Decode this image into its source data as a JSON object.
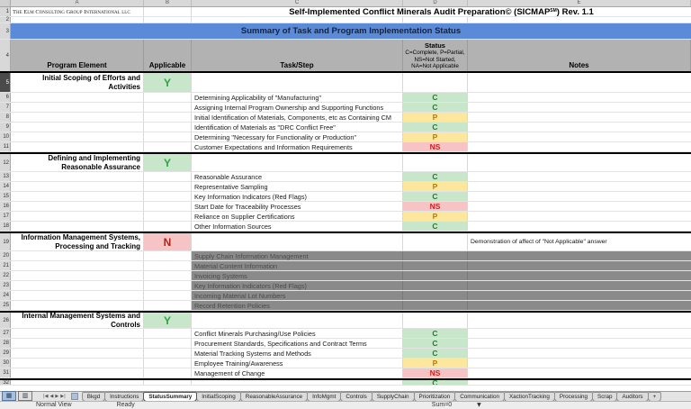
{
  "header": {
    "logo": "The Elm Consulting Group International llc",
    "title_main": "Self-Implemented Conflict Minerals Audit Preparation© (SICMAP",
    "title_sup": "SM",
    "title_tail": ")  Rev. 1.1",
    "banner": "Summary of Task and Program Implementation Status"
  },
  "columns": {
    "letters": [
      "A",
      "B",
      "C",
      "D",
      "E"
    ],
    "program_element": "Program Element",
    "applicable": "Applicable",
    "task_step": "Task/Step",
    "status_title": "Status",
    "status_legend": [
      "C=Complete, P=Partial,",
      "NS=Not Started,",
      "NA=Not Applicable"
    ],
    "notes": "Notes"
  },
  "gutter_numbers": [
    "1",
    "2",
    "3",
    "4",
    "5",
    "6",
    "7",
    "8",
    "9",
    "10",
    "11",
    "12",
    "13",
    "14",
    "15",
    "16",
    "17",
    "18",
    "19",
    "20",
    "21",
    "22",
    "23",
    "24",
    "25",
    "26",
    "27",
    "28",
    "29",
    "30",
    "31",
    "32"
  ],
  "sections": [
    {
      "row": 5,
      "title": "Initial Scoping of Efforts and Activities",
      "applicable": "Y",
      "note": "",
      "disabled": false,
      "tasks": [
        {
          "row": 6,
          "task": "Determining Applicability of \"Manufacturing\"",
          "status": "C"
        },
        {
          "row": 7,
          "task": "Assigning Internal Program Ownership and Supporting Functions",
          "status": "C"
        },
        {
          "row": 8,
          "task": "Initial Identification of Materials, Components, etc as Containing CM",
          "status": "P"
        },
        {
          "row": 9,
          "task": "Identification of Materials as \"DRC Conflict Free\"",
          "status": "C"
        },
        {
          "row": 10,
          "task": "Determining \"Necessary for Functionality or Production\"",
          "status": "P"
        },
        {
          "row": 11,
          "task": "Customer Expectations and Information Requirements",
          "status": "NS"
        }
      ]
    },
    {
      "row": 12,
      "title": "Defining and Implementing Reasonable Assurance",
      "applicable": "Y",
      "note": "",
      "disabled": false,
      "tasks": [
        {
          "row": 13,
          "task": "Reasonable Assurance",
          "status": "C"
        },
        {
          "row": 14,
          "task": "Representative Sampling",
          "status": "P"
        },
        {
          "row": 15,
          "task": "Key Information Indicators (Red Flags)",
          "status": "C"
        },
        {
          "row": 16,
          "task": "Start Date for Traceability Processes",
          "status": "NS"
        },
        {
          "row": 17,
          "task": "Reliance on Supplier Certifications",
          "status": "P"
        },
        {
          "row": 18,
          "task": "Other Information Sources",
          "status": "C"
        }
      ]
    },
    {
      "row": 19,
      "title": "Information Management Systems, Processing and Tracking",
      "applicable": "N",
      "note": "Demonstration of affect of \"Not Applicable\" answer",
      "disabled": true,
      "tasks": [
        {
          "row": 20,
          "task": "Supply Chain Information Management",
          "status": ""
        },
        {
          "row": 21,
          "task": "Material Content Information",
          "status": ""
        },
        {
          "row": 22,
          "task": "Invoicing Systems",
          "status": ""
        },
        {
          "row": 23,
          "task": "Key Information Indicators (Red Flags)",
          "status": ""
        },
        {
          "row": 24,
          "task": "Incoming Material Lot Numbers",
          "status": ""
        },
        {
          "row": 25,
          "task": "Record Retention Policies",
          "status": ""
        }
      ]
    },
    {
      "row": 26,
      "title": "Internal Management Systems and Controls",
      "applicable": "Y",
      "note": "",
      "disabled": false,
      "tasks": [
        {
          "row": 27,
          "task": "Conflict Minerals Purchasing/Use Policies",
          "status": "C"
        },
        {
          "row": 28,
          "task": "Procurement Standards, Specifications and Contract Terms",
          "status": "C"
        },
        {
          "row": 29,
          "task": "Material Tracking Systems and Methods",
          "status": "C"
        },
        {
          "row": 30,
          "task": "Employee Training/Awareness",
          "status": "P"
        },
        {
          "row": 31,
          "task": "Management of Change",
          "status": "NS"
        },
        {
          "row": 32,
          "task": "",
          "status": "C"
        }
      ]
    }
  ],
  "status_colors": {
    "C": {
      "bg": "#c8e6c9",
      "fg": "#1e7e34"
    },
    "P": {
      "bg": "#fce79c",
      "fg": "#bf7c00"
    },
    "NS": {
      "bg": "#f6c4c4",
      "fg": "#cc2222"
    },
    "Y": {
      "bg": "#c8e6c9",
      "fg": "#2fa24a"
    },
    "N": {
      "bg": "#f6c4c4",
      "fg": "#b02418"
    }
  },
  "colors": {
    "banner_bg": "#5b8ad8",
    "banner_fg": "#13243f",
    "header_bg": "#b2b2b2",
    "disabled_bg": "#8a8a8a",
    "disabled_fg": "#4a4a4a"
  },
  "tabs": {
    "active": "StatusSummary",
    "items": [
      "Bkgd",
      "Instructions",
      "StatusSummary",
      "InitialScoping",
      "ReasonableAssurance",
      "InfoMgmt",
      "Controls",
      "SupplyChain",
      "Prioritization",
      "Communication",
      "XactionTracking",
      "Processing",
      "Scrap",
      "Auditors",
      "+"
    ]
  },
  "tab_nav": [
    "|◀",
    "◀",
    "▶",
    "▶|"
  ],
  "view_buttons": [
    {
      "name": "normal-view-button",
      "glyph": "▦"
    },
    {
      "name": "page-layout-view-button",
      "glyph": "▥"
    }
  ],
  "status_bar": {
    "view": "Normal View",
    "state": "Ready",
    "sum": "Sum=0",
    "dropdown": "▼"
  }
}
